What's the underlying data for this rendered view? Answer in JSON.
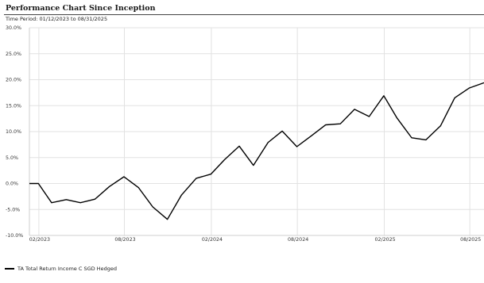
{
  "chart_data": {
    "type": "line",
    "title": "Performance Chart Since Inception",
    "subtitle": "Time Period: 01/12/2023 to 08/31/2025",
    "xlabel": "",
    "ylabel": "",
    "ylim": [
      -10,
      30
    ],
    "yticks": [
      "30.0%",
      "25.0%",
      "20.0%",
      "15.0%",
      "10.0%",
      "5.0%",
      "0.0%",
      "-5.0%",
      "-10.0%"
    ],
    "ytick_values": [
      30,
      25,
      20,
      15,
      10,
      5,
      0,
      -5,
      -10
    ],
    "xlim": [
      "2023-01-12",
      "2025-08-31"
    ],
    "xticks": [
      {
        "label": "02/2023",
        "date": "2023-02-01"
      },
      {
        "label": "08/2023",
        "date": "2023-08-01"
      },
      {
        "label": "02/2024",
        "date": "2024-02-01"
      },
      {
        "label": "08/2024",
        "date": "2024-08-01"
      },
      {
        "label": "02/2025",
        "date": "2025-02-01"
      },
      {
        "label": "08/2025",
        "date": "2025-08-01"
      }
    ],
    "grid": true,
    "line_color": "#000000",
    "series": [
      {
        "name": "TA Total Return Income C SGD Hedged",
        "x": [
          "2023-01-12",
          "2023-01-31",
          "2023-02-28",
          "2023-03-31",
          "2023-04-30",
          "2023-05-31",
          "2023-06-30",
          "2023-07-31",
          "2023-08-31",
          "2023-09-30",
          "2023-10-31",
          "2023-11-30",
          "2023-12-31",
          "2024-01-31",
          "2024-02-29",
          "2024-03-31",
          "2024-04-30",
          "2024-05-31",
          "2024-06-30",
          "2024-07-31",
          "2024-08-31",
          "2024-09-30",
          "2024-10-31",
          "2024-11-30",
          "2024-12-31",
          "2025-01-31",
          "2025-02-28",
          "2025-03-31",
          "2025-04-30",
          "2025-05-31",
          "2025-06-30",
          "2025-07-31",
          "2025-08-31"
        ],
        "values": [
          0.0,
          0.0,
          -3.7,
          -3.1,
          -3.7,
          -3.0,
          -0.6,
          1.3,
          -0.8,
          -4.5,
          -6.9,
          -2.2,
          1.0,
          1.8,
          4.6,
          7.2,
          3.5,
          7.9,
          10.1,
          7.1,
          9.2,
          11.3,
          11.5,
          14.3,
          12.9,
          16.9,
          12.6,
          8.8,
          8.4,
          11.1,
          16.5,
          18.4,
          19.4
        ]
      }
    ]
  }
}
